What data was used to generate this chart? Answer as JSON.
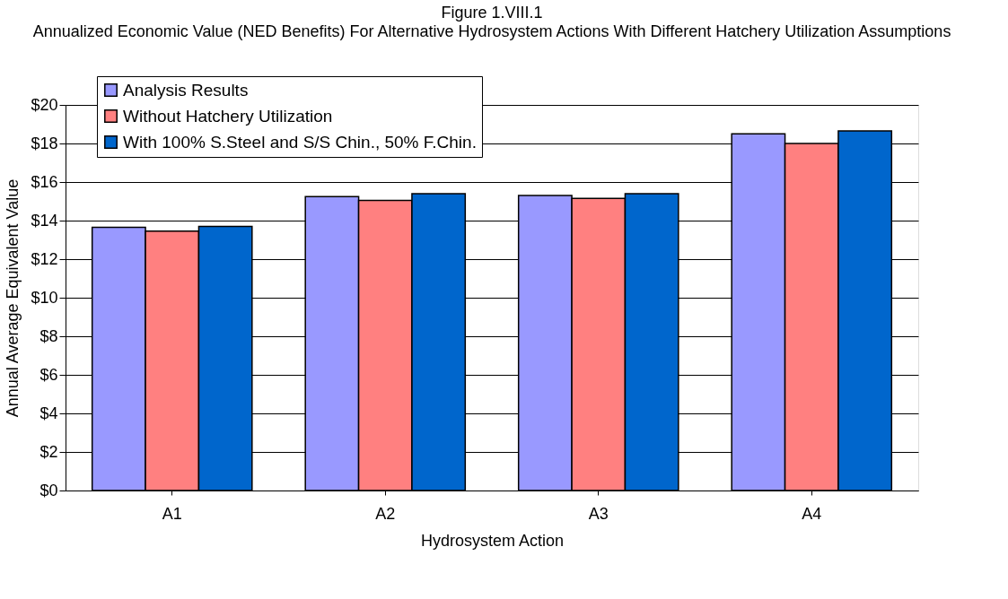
{
  "chart_data": {
    "type": "bar",
    "title": "Figure 1.VIII.1",
    "subtitle": "Annualized Economic Value (NED Benefits) For Alternative Hydrosystem Actions With Different Hatchery Utilization Assumptions",
    "xlabel": "Hydrosystem Action",
    "ylabel": "Annual Average Equivalent Value",
    "categories": [
      "A1",
      "A2",
      "A3",
      "A4"
    ],
    "series": [
      {
        "name": "Analysis Results",
        "color": "#9999ff",
        "values": [
          13.65,
          15.25,
          15.3,
          18.5
        ]
      },
      {
        "name": "Without Hatchery Utilization",
        "color": "#ff8080",
        "values": [
          13.45,
          15.05,
          15.15,
          18.0
        ]
      },
      {
        "name": "With 100% S.Steel and S/S Chin., 50% F.Chin.",
        "color": "#0066cc",
        "values": [
          13.7,
          15.4,
          15.4,
          18.65
        ]
      }
    ],
    "ylim": [
      0,
      20
    ],
    "yticks": [
      {
        "value": 0,
        "label": "$0"
      },
      {
        "value": 2,
        "label": "$2"
      },
      {
        "value": 4,
        "label": "$4"
      },
      {
        "value": 6,
        "label": "$6"
      },
      {
        "value": 8,
        "label": "$8"
      },
      {
        "value": 10,
        "label": "$10"
      },
      {
        "value": 12,
        "label": "$12"
      },
      {
        "value": 14,
        "label": "$14"
      },
      {
        "value": 16,
        "label": "$16"
      },
      {
        "value": 18,
        "label": "$18"
      },
      {
        "value": 20,
        "label": "$20"
      }
    ],
    "grid": "y",
    "legend": "top left"
  }
}
